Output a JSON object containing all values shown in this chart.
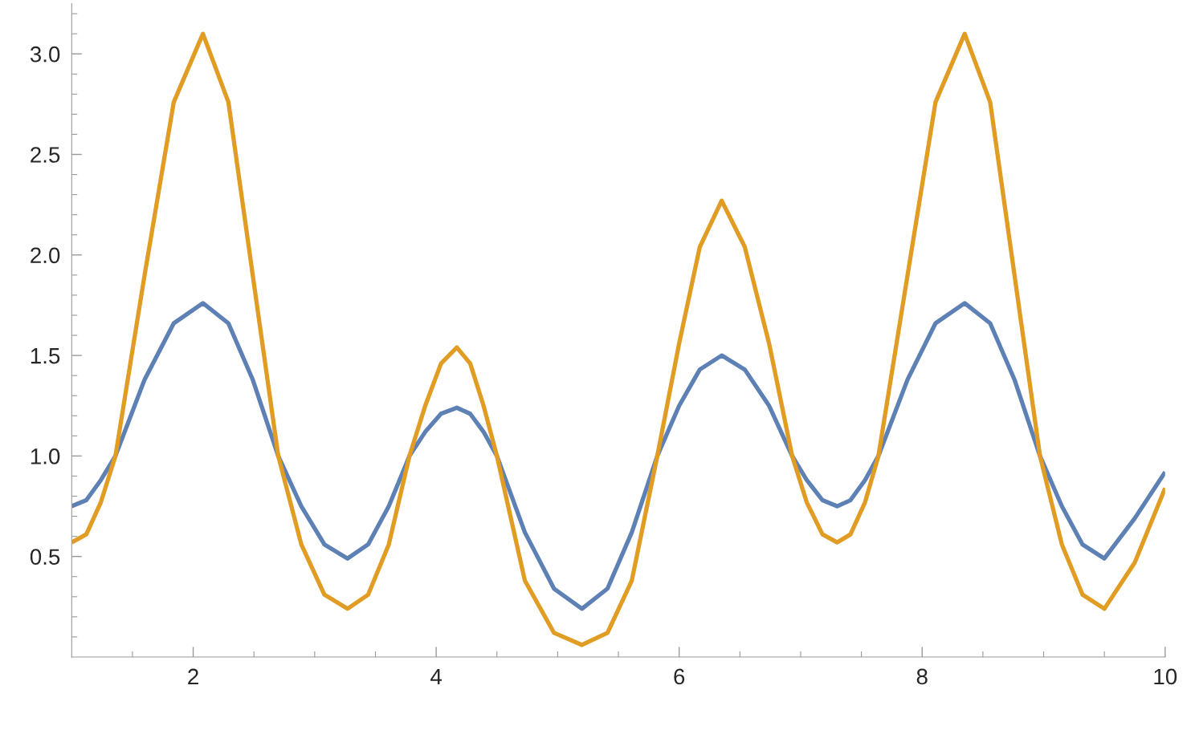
{
  "chart_data": {
    "type": "line",
    "x": [
      1,
      1.12,
      1.24,
      1.36,
      1.6,
      1.84,
      2.08,
      2.29,
      2.49,
      2.7,
      2.89,
      3.08,
      3.27,
      3.44,
      3.61,
      3.78,
      3.91,
      4.04,
      4.17,
      4.28,
      4.39,
      4.5,
      4.73,
      4.97,
      5.2,
      5.41,
      5.61,
      5.82,
      6.0,
      6.17,
      6.35,
      6.54,
      6.74,
      6.93,
      7.05,
      7.18,
      7.3,
      7.41,
      7.53,
      7.64,
      7.88,
      8.11,
      8.35,
      8.56,
      8.76,
      8.97,
      9.15,
      9.32,
      9.5,
      9.75,
      10
    ],
    "series": [
      {
        "color": "#5e81b5",
        "values": [
          0.75,
          0.78,
          0.88,
          1.0,
          1.38,
          1.66,
          1.76,
          1.66,
          1.38,
          1.0,
          0.75,
          0.56,
          0.49,
          0.56,
          0.75,
          1.0,
          1.12,
          1.21,
          1.24,
          1.21,
          1.12,
          1.0,
          0.62,
          0.34,
          0.24,
          0.34,
          0.62,
          1.0,
          1.25,
          1.43,
          1.5,
          1.43,
          1.25,
          1.0,
          0.88,
          0.78,
          0.75,
          0.78,
          0.88,
          1.0,
          1.38,
          1.66,
          1.76,
          1.66,
          1.38,
          1.0,
          0.75,
          0.56,
          0.49,
          0.69,
          0.92
        ]
      },
      {
        "color": "#e19c24",
        "values": [
          0.57,
          0.61,
          0.77,
          1.0,
          1.9,
          2.76,
          3.1,
          2.76,
          1.9,
          1.0,
          0.56,
          0.31,
          0.24,
          0.31,
          0.56,
          1.0,
          1.25,
          1.46,
          1.54,
          1.46,
          1.25,
          1.0,
          0.38,
          0.12,
          0.06,
          0.12,
          0.38,
          1.0,
          1.56,
          2.04,
          2.27,
          2.04,
          1.56,
          1.0,
          0.77,
          0.61,
          0.57,
          0.61,
          0.77,
          1.0,
          1.9,
          2.76,
          3.1,
          2.76,
          1.9,
          1.0,
          0.56,
          0.31,
          0.24,
          0.47,
          0.84
        ]
      }
    ],
    "xlim": [
      1,
      10
    ],
    "ylim": [
      0,
      3.25
    ],
    "xticks": [
      {
        "value": 1.5,
        "label": null
      },
      2,
      {
        "value": 2.5,
        "label": null
      },
      {
        "value": 3,
        "label": null
      },
      {
        "value": 3.5,
        "label": null
      },
      4,
      {
        "value": 4.5,
        "label": null
      },
      {
        "value": 5,
        "label": null
      },
      {
        "value": 5.5,
        "label": null
      },
      6,
      {
        "value": 6.5,
        "label": null
      },
      {
        "value": 7,
        "label": null
      },
      {
        "value": 7.5,
        "label": null
      },
      8,
      {
        "value": 8.5,
        "label": null
      },
      {
        "value": 9,
        "label": null
      },
      {
        "value": 9.5,
        "label": null
      },
      10
    ],
    "yticks": [
      {
        "value": 0.1,
        "label": null
      },
      {
        "value": 0.2,
        "label": null
      },
      {
        "value": 0.3,
        "label": null
      },
      {
        "value": 0.4,
        "label": null
      },
      {
        "value": 0.5,
        "label": "0.5"
      },
      {
        "value": 0.6,
        "label": null
      },
      {
        "value": 0.7,
        "label": null
      },
      {
        "value": 0.8,
        "label": null
      },
      {
        "value": 0.9,
        "label": null
      },
      {
        "value": 1.0,
        "label": "1.0"
      },
      {
        "value": 1.1,
        "label": null
      },
      {
        "value": 1.2,
        "label": null
      },
      {
        "value": 1.3,
        "label": null
      },
      {
        "value": 1.4,
        "label": null
      },
      {
        "value": 1.5,
        "label": "1.5"
      },
      {
        "value": 1.6,
        "label": null
      },
      {
        "value": 1.7,
        "label": null
      },
      {
        "value": 1.8,
        "label": null
      },
      {
        "value": 1.9,
        "label": null
      },
      {
        "value": 2.0,
        "label": "2.0"
      },
      {
        "value": 2.1,
        "label": null
      },
      {
        "value": 2.2,
        "label": null
      },
      {
        "value": 2.3,
        "label": null
      },
      {
        "value": 2.4,
        "label": null
      },
      {
        "value": 2.5,
        "label": "2.5"
      },
      {
        "value": 2.6,
        "label": null
      },
      {
        "value": 2.7,
        "label": null
      },
      {
        "value": 2.8,
        "label": null
      },
      {
        "value": 2.9,
        "label": null
      },
      {
        "value": 3.0,
        "label": "3.0"
      },
      {
        "value": 3.1,
        "label": null
      },
      {
        "value": 3.2,
        "label": null
      }
    ],
    "grid": false,
    "legend": false,
    "marker": "none",
    "line_style": "solid"
  }
}
